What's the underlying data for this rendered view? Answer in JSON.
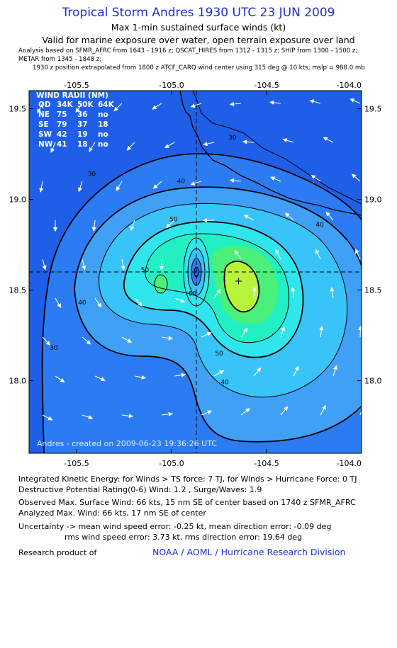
{
  "header": {
    "title": "Tropical Storm Andres 1930 UTC 23 JUN 2009",
    "subtitle": "Max 1-min sustained surface winds (kt)",
    "valid": "Valid for marine exposure over water, open terrain exposure over land",
    "analysis_line1": "Analysis based on  SFMR_AFRC from 1643 - 1916 z;  QSCAT_HIRES from 1312 - 1315 z;  SHIP from 1300 - 1500 z;",
    "analysis_line2": "METAR from 1345 - 1848 z;",
    "analysis_line3": "1930 z position extrapolated from 1800 z ATCF_CARQ wind center using 315 deg @ 10 kts; mslp = 988.0 mb"
  },
  "wind_radii": {
    "title": "WIND RADII (NM)",
    "header": [
      "QD",
      "34K",
      "50K",
      "64K"
    ],
    "rows": [
      [
        "NE",
        "75",
        "36",
        "no"
      ],
      [
        "SE",
        "79",
        "37",
        "18"
      ],
      [
        "SW",
        "42",
        "19",
        "no"
      ],
      [
        "NW",
        "41",
        "18",
        "no"
      ]
    ]
  },
  "watermark": "Andres - created on 2009-06-23 19:36:26 UTC",
  "chart_data": {
    "type": "contour",
    "xlim": [
      -105.75,
      -104.0
    ],
    "ylim": [
      17.6,
      19.6
    ],
    "x_ticks": [
      "-105.5",
      "-105.0",
      "-104.5",
      "-104.0"
    ],
    "y_ticks": [
      "19.5",
      "19.0",
      "18.5",
      "18.0"
    ],
    "center": {
      "lon": -105.0,
      "lat": 18.58
    },
    "max_wind_location": {
      "lon": -104.74,
      "lat": 18.53
    },
    "contour_levels": [
      30,
      40,
      50,
      60
    ],
    "contour_labels": [
      {
        "text": "30",
        "lon": -104.68,
        "lat": 19.33
      },
      {
        "text": "30",
        "lon": -105.42,
        "lat": 19.13
      },
      {
        "text": "30",
        "lon": -105.62,
        "lat": 18.17
      },
      {
        "text": "40",
        "lon": -104.95,
        "lat": 19.09
      },
      {
        "text": "40",
        "lon": -104.22,
        "lat": 18.85
      },
      {
        "text": "40",
        "lon": -105.47,
        "lat": 18.42
      },
      {
        "text": "40",
        "lon": -104.72,
        "lat": 17.98
      },
      {
        "text": "50",
        "lon": -104.99,
        "lat": 18.88
      },
      {
        "text": "50",
        "lon": -105.14,
        "lat": 18.6
      },
      {
        "text": "50",
        "lon": -104.75,
        "lat": 18.14
      },
      {
        "text": "60",
        "lon": -104.89,
        "lat": 18.47
      }
    ],
    "color_scale": [
      "#1f5ee6",
      "#2b7cf2",
      "#3fa0f6",
      "#38c4f8",
      "#2ee6ec",
      "#22f0c2",
      "#4af07a",
      "#b8f43a"
    ]
  },
  "stats": {
    "ike": "Integrated Kinetic Energy:  for Winds > TS force: 7 TJ,  for Winds > Hurricane Force: 0 TJ",
    "dpr": "Destructive Potential Rating(0-6)   Wind: 1.2 , Surge/Waves: 1.9",
    "obs_max": "Observed Max. Surface Wind: 66 kts, 15 nm SE of center based on 1740 z SFMR_AFRC",
    "an_max": "Analyzed Max. Wind: 66 kts, 17 nm SE of center",
    "unc1": "Uncertainty -> mean wind speed error:  -0.25 kt,   mean direction error:  -0.09 deg",
    "unc2": "rms wind speed error: 3.73 kt,   rms direction error: 19.64 deg"
  },
  "footer": {
    "research": "Research product of",
    "org": "NOAA / AOML / Hurricane Research Division"
  }
}
